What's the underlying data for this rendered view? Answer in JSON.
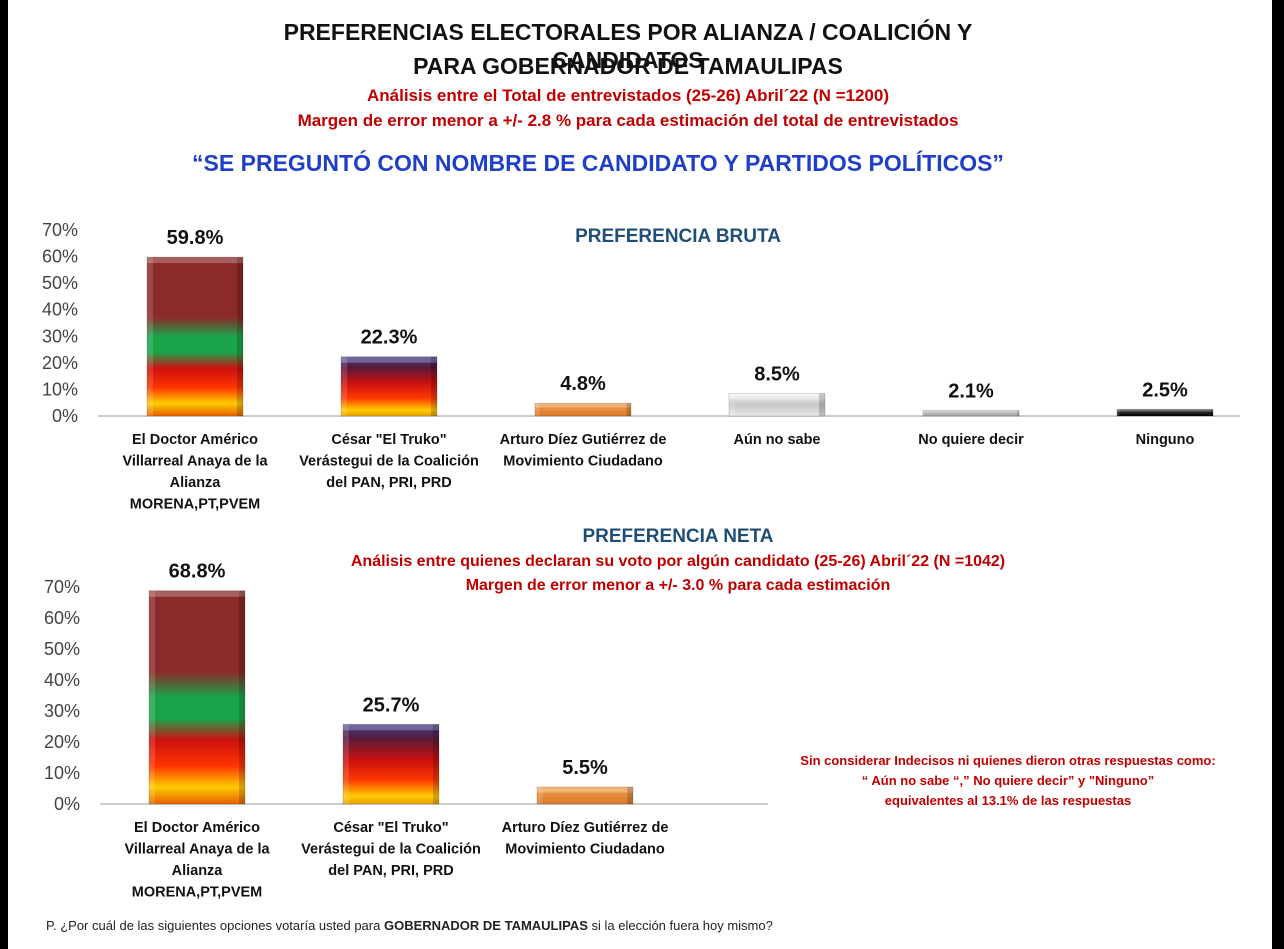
{
  "header": {
    "title_line1": "PREFERENCIAS ELECTORALES POR ALIANZA / COALICIÓN Y CANDIDATOS",
    "title_line2": "PARA GOBERNADOR DE TAMAULIPAS",
    "subtitle_line1": "Análisis entre el Total de entrevistados (25-26) Abril´22 (N =1200)",
    "subtitle_line2": "Margen de error menor a +/-  2.8 %  para cada estimación del total de entrevistados",
    "question_banner": "“SE PREGUNTÓ CON NOMBRE DE CANDIDATO Y PARTIDOS POLÍTICOS”"
  },
  "neta_section": {
    "subtitle_line1": "Análisis entre quienes declaran su voto por algún candidato (25-26) Abril´22 (N =1042)",
    "subtitle_line2": "Margen de error menor a +/- 3.0 %  para cada estimación"
  },
  "note": {
    "line1": "Sin considerar Indecisos ni quienes dieron otras respuestas como:",
    "line2": "“ Aún no sabe “,” No quiere decir” y \"Ninguno”",
    "line3": "equivalentes al   13.1% de las respuestas"
  },
  "footer": {
    "prefix": "P. ¿Por cuál de las siguientes opciones votaría usted para ",
    "bold": "GOBERNADOR DE TAMAULIPAS",
    "suffix": " si la elección fuera hoy mismo?"
  },
  "colors": {
    "morena_top": "#8b2a2a",
    "morena_green": "#1aa44a",
    "coalicion_top": "#3a3a8c",
    "mc_orange": "#e8873a",
    "aun_no_sabe": "#d9d9d9",
    "ninguno": "#111111",
    "subtitle_red": "#c00000",
    "section_blue": "#1f4e79",
    "banner_blue": "#1f3fc8"
  },
  "chart_data": [
    {
      "type": "bar",
      "title": "PREFERENCIA BRUTA",
      "categories": [
        [
          "El Doctor Américo",
          "Villarreal Anaya de la",
          "Alianza",
          "MORENA,PT,PVEM"
        ],
        [
          "César \"El Truko\"",
          "Verástegui de la Coalición",
          "del PAN, PRI, PRD"
        ],
        [
          "Arturo Díez Gutiérrez  de",
          "Movimiento Ciudadano"
        ],
        [
          "Aún no sabe"
        ],
        [
          "No quiere decir"
        ],
        [
          "Ninguno"
        ]
      ],
      "values": [
        59.8,
        22.3,
        4.8,
        8.5,
        2.1,
        2.5
      ],
      "value_labels": [
        "59.8%",
        "22.3%",
        "4.8%",
        "8.5%",
        "2.1%",
        "2.5%"
      ],
      "styles": [
        "morena",
        "coalicion",
        "mc",
        "gray",
        "lightgray",
        "black"
      ],
      "ylim": [
        0,
        70
      ],
      "yticks": [
        "0%",
        "10%",
        "20%",
        "30%",
        "40%",
        "50%",
        "60%",
        "70%"
      ]
    },
    {
      "type": "bar",
      "title": "PREFERENCIA NETA",
      "categories": [
        [
          "El Doctor Américo",
          "Villarreal Anaya de la",
          "Alianza",
          "MORENA,PT,PVEM"
        ],
        [
          "César \"El Truko\"",
          "Verástegui de la Coalición",
          "del PAN, PRI, PRD"
        ],
        [
          "Arturo Díez Gutiérrez  de",
          "Movimiento Ciudadano"
        ]
      ],
      "values": [
        68.8,
        25.7,
        5.5
      ],
      "value_labels": [
        "68.8%",
        "25.7%",
        "5.5%"
      ],
      "styles": [
        "morena",
        "coalicion",
        "mc"
      ],
      "ylim": [
        0,
        70
      ],
      "yticks": [
        "0%",
        "10%",
        "20%",
        "30%",
        "40%",
        "50%",
        "60%",
        "70%"
      ]
    }
  ]
}
